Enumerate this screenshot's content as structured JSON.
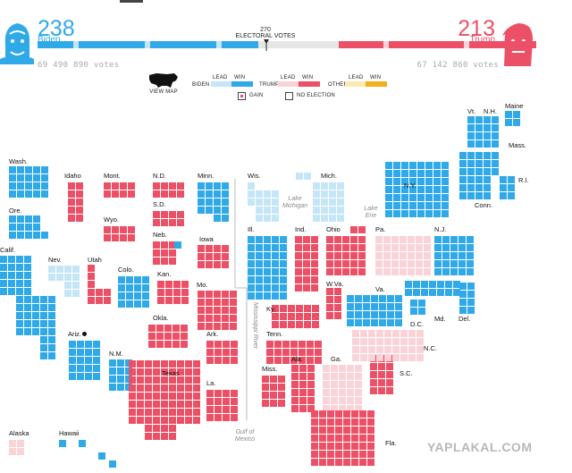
{
  "colors": {
    "biden_win": "#2fa9e8",
    "biden_lead": "#c5e6f7",
    "trump_win": "#ec5066",
    "trump_lead": "#fad3d9",
    "other_lead": "#fbe9b3",
    "other_win": "#f2b01d",
    "gain": "#ec5066"
  },
  "header": {
    "biden": {
      "electoral_votes": "238",
      "name": "Biden",
      "popular_votes": "69 490 890 votes"
    },
    "trump": {
      "electoral_votes": "213",
      "name": "Trump",
      "popular_votes": "67 142 860 votes"
    },
    "threshold": {
      "number": "270",
      "label": "ELECTORAL VOTES"
    }
  },
  "meter": {
    "total": 538,
    "biden": 238,
    "trump": 213
  },
  "controls": {
    "view_map_label": "VIEW MAP",
    "legend": {
      "lead_label": "LEAD",
      "win_label": "WIN",
      "biden_label": "BIDEN",
      "trump_label": "TRUMP",
      "other_label": "OTHER",
      "gain_label": "GAIN",
      "no_election_label": "NO ELECTION"
    }
  },
  "states": {
    "wash": "Wash.",
    "ore": "Ore.",
    "calif": "Calif.",
    "idaho": "Idaho",
    "nev": "Nev.",
    "utah": "Utah",
    "ariz": "Ariz.",
    "mont": "Mont.",
    "wyo": "Wyo.",
    "colo": "Colo.",
    "nm": "N.M.",
    "nd": "N.D.",
    "sd": "S.D.",
    "neb": "Neb.",
    "kan": "Kan.",
    "okla": "Okla.",
    "texas": "Texas",
    "minn": "Minn.",
    "iowa": "Iowa",
    "mo": "Mo.",
    "ark": "Ark.",
    "la": "La.",
    "wis": "Wis.",
    "mich": "Mich.",
    "ill": "Ill.",
    "ind": "Ind.",
    "ohio": "Ohio",
    "ky": "Ky.",
    "tenn": "Tenn.",
    "miss": "Miss.",
    "ala": "Ala.",
    "ga": "Ga.",
    "fla": "Fla.",
    "sc": "S.C.",
    "nc": "N.C.",
    "va": "Va.",
    "wva": "W.Va.",
    "pa": "Pa.",
    "ny": "N.Y.",
    "nj": "N.J.",
    "md": "Md.",
    "del": "Del.",
    "dc": "D.C.",
    "vt": "Vt.",
    "nh": "N.H.",
    "maine": "Maine",
    "mass": "Mass.",
    "ri": "R.I.",
    "conn": "Conn.",
    "alaska": "Alaska",
    "hawaii": "Hawaii"
  },
  "geography": {
    "lake_michigan": "Lake Michigan",
    "lake_erie": "Lake Erie",
    "mississippi": "Mississippi River",
    "gulf": "Gulf of Mexico"
  },
  "watermark": "YAPLAKAL.COM"
}
